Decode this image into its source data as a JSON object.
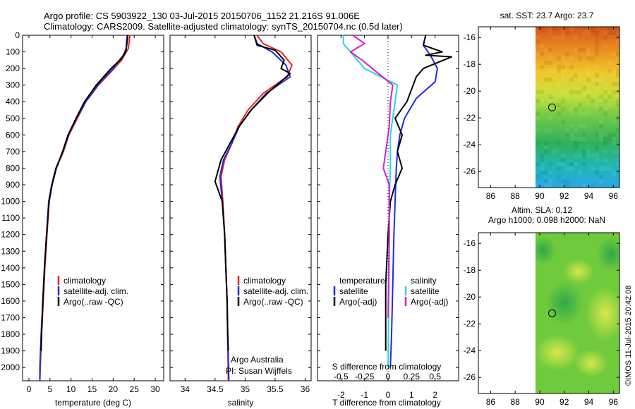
{
  "header": {
    "line1": "Argo profile: CS 5903922_130 03-Jul-2015 20150706_1152 21.216S 91.006E",
    "line2": "Climatology: CARS2009. Satellite-adjusted climatology: synTS_20150704.nc (0.5d later)"
  },
  "stamp": "©IMOS 11-Jul-2015 20:42:08",
  "chart_data": [
    {
      "type": "line",
      "id": "temperature",
      "xlabel": "temperature (deg C)",
      "xlim": [
        -1.5,
        32
      ],
      "ylim": [
        0,
        2080
      ],
      "xticks": [
        0,
        5,
        10,
        15,
        20,
        25,
        30
      ],
      "yticks": [
        0,
        100,
        200,
        300,
        400,
        500,
        600,
        700,
        800,
        900,
        1000,
        1100,
        1200,
        1300,
        1400,
        1500,
        1600,
        1700,
        1800,
        1900,
        2000
      ],
      "legend": [
        "climatology",
        "satellite-adj. clim.",
        "Argo(..raw -QC)"
      ],
      "series": [
        {
          "name": "climatology",
          "color": "#e8261b",
          "points": [
            [
              24.0,
              0
            ],
            [
              23.6,
              80
            ],
            [
              22.0,
              150
            ],
            [
              19.5,
              220
            ],
            [
              16.5,
              300
            ],
            [
              13.5,
              400
            ],
            [
              11.5,
              500
            ],
            [
              9.5,
              600
            ],
            [
              8.2,
              700
            ],
            [
              6.5,
              800
            ],
            [
              5.5,
              900
            ],
            [
              4.8,
              1000
            ],
            [
              4.3,
              1200
            ],
            [
              3.8,
              1400
            ],
            [
              3.4,
              1600
            ],
            [
              3.0,
              1800
            ],
            [
              2.7,
              2000
            ],
            [
              2.6,
              2080
            ]
          ]
        },
        {
          "name": "satellite-adj. clim.",
          "color": "#1f2bdc",
          "points": [
            [
              23.3,
              0
            ],
            [
              23.1,
              80
            ],
            [
              22.4,
              120
            ],
            [
              20.0,
              200
            ],
            [
              17.0,
              280
            ],
            [
              13.5,
              400
            ],
            [
              11.3,
              500
            ],
            [
              9.4,
              600
            ],
            [
              8.1,
              700
            ],
            [
              6.4,
              800
            ],
            [
              5.4,
              900
            ],
            [
              4.7,
              1000
            ],
            [
              4.2,
              1200
            ],
            [
              3.7,
              1400
            ],
            [
              3.3,
              1600
            ],
            [
              2.9,
              1800
            ],
            [
              2.6,
              2000
            ],
            [
              2.6,
              2080
            ]
          ]
        },
        {
          "name": "Argo(..raw -QC)",
          "color": "#000000",
          "points": [
            [
              23.5,
              0
            ],
            [
              23.2,
              60
            ],
            [
              23.0,
              100
            ],
            [
              22.0,
              140
            ],
            [
              19.5,
              200
            ],
            [
              16.0,
              300
            ],
            [
              13.2,
              400
            ],
            [
              11.2,
              500
            ],
            [
              9.3,
              600
            ],
            [
              8.0,
              700
            ],
            [
              6.5,
              800
            ],
            [
              5.5,
              900
            ],
            [
              4.8,
              1000
            ],
            [
              4.2,
              1200
            ],
            [
              3.7,
              1400
            ],
            [
              3.3,
              1600
            ],
            [
              3.0,
              1800
            ],
            [
              2.9,
              1900
            ]
          ]
        }
      ]
    },
    {
      "type": "line",
      "id": "salinity",
      "xlabel": "salinity",
      "xlim": [
        33.75,
        36.1
      ],
      "ylim": [
        0,
        2080
      ],
      "xticks": [
        34,
        34.5,
        35,
        35.5,
        36
      ],
      "xticklabels": [
        "34",
        "34.5",
        "35",
        "35.5",
        "36"
      ],
      "legend": [
        "climatology",
        "satellite-adj. clim.",
        "Argo(..raw -QC)"
      ],
      "annotations": [
        "Argo Australia",
        "PI: Susan Wijffels"
      ],
      "series": [
        {
          "name": "climatology",
          "color": "#e8261b",
          "points": [
            [
              35.2,
              0
            ],
            [
              35.3,
              50
            ],
            [
              35.6,
              100
            ],
            [
              35.78,
              180
            ],
            [
              35.7,
              250
            ],
            [
              35.3,
              350
            ],
            [
              35.05,
              450
            ],
            [
              34.88,
              550
            ],
            [
              34.78,
              650
            ],
            [
              34.66,
              750
            ],
            [
              34.6,
              850
            ],
            [
              34.63,
              1000
            ],
            [
              34.66,
              1200
            ],
            [
              34.68,
              1400
            ],
            [
              34.7,
              1600
            ],
            [
              34.71,
              1800
            ],
            [
              34.72,
              2080
            ]
          ]
        },
        {
          "name": "satellite-adj. clim.",
          "color": "#1f2bdc",
          "points": [
            [
              35.15,
              0
            ],
            [
              35.2,
              50
            ],
            [
              35.45,
              100
            ],
            [
              35.68,
              180
            ],
            [
              35.75,
              250
            ],
            [
              35.35,
              350
            ],
            [
              35.1,
              450
            ],
            [
              34.9,
              550
            ],
            [
              34.78,
              650
            ],
            [
              34.64,
              750
            ],
            [
              34.58,
              850
            ],
            [
              34.62,
              1000
            ],
            [
              34.66,
              1200
            ],
            [
              34.68,
              1400
            ],
            [
              34.7,
              1600
            ],
            [
              34.71,
              1800
            ],
            [
              34.73,
              2080
            ]
          ]
        },
        {
          "name": "Argo(..raw -QC)",
          "color": "#000000",
          "points": [
            [
              35.15,
              0
            ],
            [
              35.2,
              60
            ],
            [
              35.5,
              90
            ],
            [
              35.65,
              150
            ],
            [
              35.6,
              200
            ],
            [
              35.75,
              230
            ],
            [
              35.4,
              340
            ],
            [
              35.1,
              450
            ],
            [
              34.9,
              550
            ],
            [
              34.75,
              650
            ],
            [
              34.6,
              750
            ],
            [
              34.5,
              880
            ],
            [
              34.62,
              1000
            ],
            [
              34.66,
              1200
            ],
            [
              34.68,
              1400
            ],
            [
              34.7,
              1600
            ],
            [
              34.71,
              1800
            ],
            [
              34.72,
              1900
            ]
          ]
        }
      ]
    },
    {
      "type": "line",
      "id": "difference",
      "xlabel_top": "S difference from climatology",
      "xlabel": "T difference from climatology",
      "xlim": [
        -3.0,
        3.0
      ],
      "ylim": [
        0,
        2080
      ],
      "xticks_top": [
        -0.5,
        -0.25,
        0,
        0.25,
        0.5
      ],
      "xticks_top_labels": [
        "-0.5",
        "-0.25",
        "0",
        "0.25",
        "0.5"
      ],
      "xticks": [
        -2,
        -1,
        0,
        1,
        2
      ],
      "legend_temperature": {
        "title": "temperature",
        "items": [
          "satellite",
          "Argo(-adj)"
        ]
      },
      "legend_salinity": {
        "title": "salinity",
        "items": [
          "satellite",
          "Argo(-adj)"
        ]
      },
      "series": [
        {
          "name": "T satellite",
          "color": "#1f2bdc",
          "points": [
            [
              1.6,
              0
            ],
            [
              1.5,
              60
            ],
            [
              1.8,
              120
            ],
            [
              2.1,
              200
            ],
            [
              2.0,
              280
            ],
            [
              1.2,
              380
            ],
            [
              0.7,
              500
            ],
            [
              0.5,
              600
            ],
            [
              0.4,
              700
            ],
            [
              0.35,
              800
            ],
            [
              0.3,
              1000
            ],
            [
              0.25,
              1200
            ],
            [
              0.2,
              1500
            ],
            [
              0.15,
              1800
            ],
            [
              0.1,
              2000
            ]
          ]
        },
        {
          "name": "T Argo(-adj)",
          "color": "#000000",
          "points": [
            [
              1.6,
              0
            ],
            [
              1.5,
              60
            ],
            [
              2.3,
              100
            ],
            [
              1.6,
              120
            ],
            [
              2.7,
              130
            ],
            [
              1.5,
              200
            ],
            [
              1.2,
              250
            ],
            [
              0.8,
              400
            ],
            [
              0.3,
              500
            ],
            [
              0.6,
              600
            ],
            [
              0.4,
              700
            ],
            [
              0.6,
              800
            ],
            [
              0.3,
              900
            ],
            [
              0.1,
              1000
            ],
            [
              0.0,
              1200
            ],
            [
              -0.1,
              1500
            ],
            [
              -0.1,
              1800
            ],
            [
              -0.1,
              1900
            ]
          ]
        },
        {
          "name": "S satellite",
          "color": "#2ad4e8",
          "points": [
            [
              -1.9,
              0
            ],
            [
              -1.9,
              50
            ],
            [
              -1.6,
              100
            ],
            [
              -1.0,
              200
            ],
            [
              0.4,
              300
            ],
            [
              0.3,
              400
            ],
            [
              0.1,
              600
            ],
            [
              0.1,
              800
            ],
            [
              0.05,
              1000
            ],
            [
              0.05,
              1300
            ],
            [
              0.02,
              1700
            ],
            [
              0.0,
              2000
            ]
          ]
        },
        {
          "name": "S Argo(-adj)",
          "color": "#d81fd0",
          "points": [
            [
              -1.5,
              0
            ],
            [
              -1.0,
              50
            ],
            [
              -1.6,
              100
            ],
            [
              -1.1,
              150
            ],
            [
              -0.5,
              220
            ],
            [
              0.2,
              300
            ],
            [
              0.1,
              400
            ],
            [
              0.05,
              550
            ],
            [
              -0.1,
              700
            ],
            [
              -0.2,
              800
            ],
            [
              0.05,
              900
            ],
            [
              0.05,
              1000
            ],
            [
              0.05,
              1200
            ],
            [
              0.02,
              1500
            ],
            [
              0.0,
              1700
            ]
          ]
        }
      ]
    },
    {
      "type": "heatmap",
      "id": "sst-map",
      "title": "sat. SST: 23.7 Argo: 23.7",
      "xlim": [
        85,
        96.5
      ],
      "ylim": [
        -27.2,
        -15.2
      ],
      "xticks": [
        86,
        88,
        90,
        92,
        94,
        96
      ],
      "yticks": [
        -16,
        -18,
        -20,
        -22,
        -24,
        -26
      ],
      "data_start_lon": 90,
      "float_position": [
        91.006,
        -21.216
      ]
    },
    {
      "type": "heatmap",
      "id": "sla-map",
      "title": "Altim. SLA: 0.12",
      "subtitle": "Argo h1000: 0.098 h2000: NaN",
      "xlim": [
        85,
        96.5
      ],
      "ylim": [
        -27.2,
        -15.2
      ],
      "xticks": [
        86,
        88,
        90,
        92,
        94,
        96
      ],
      "yticks": [
        -16,
        -18,
        -20,
        -22,
        -24,
        -26
      ],
      "data_start_lon": 90,
      "float_position": [
        91.006,
        -21.216
      ]
    }
  ]
}
